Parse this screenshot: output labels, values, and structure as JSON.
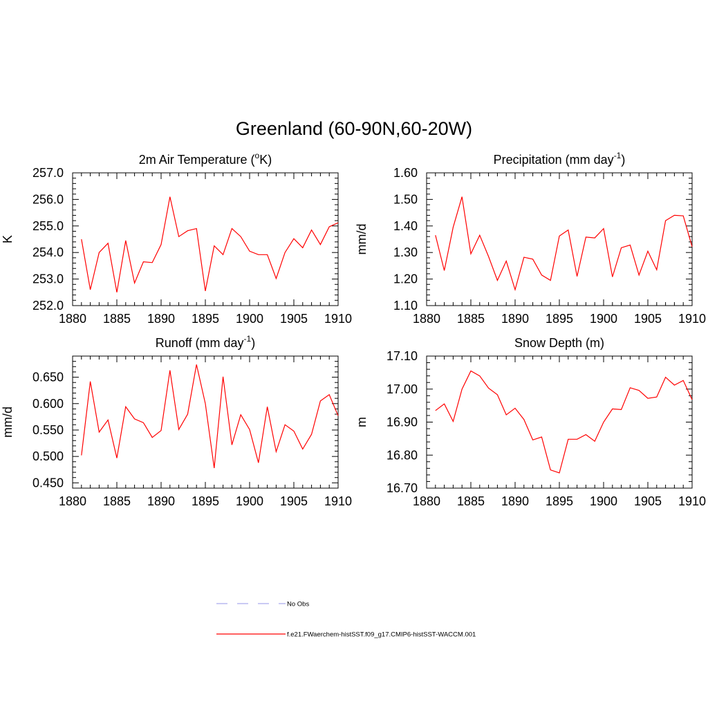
{
  "figure": {
    "title": "Greenland (60-90N,60-20W)",
    "line_color": "#ff0000",
    "legend": [
      {
        "label": "No Obs",
        "color": "#aaaaee",
        "style": "dashed"
      },
      {
        "label": "f.e21.FWaerchem-histSST.f09_g17.CMIP6-histSST-WACCM.001",
        "color": "#ff0000",
        "style": "solid"
      }
    ]
  },
  "chart_data": [
    {
      "type": "line",
      "title_main": "2m Air Temperature (",
      "title_sup": "o",
      "title_tail": "K)",
      "ylabel": "K",
      "xlim": [
        1880,
        1910
      ],
      "ylim": [
        252.0,
        257.0
      ],
      "xticks": [
        1880,
        1885,
        1890,
        1895,
        1900,
        1905,
        1910
      ],
      "yticks": [
        "252.0",
        "253.0",
        "254.0",
        "255.0",
        "256.0",
        "257.0"
      ],
      "series": [
        {
          "x": [
            1881,
            1882,
            1883,
            1884,
            1885,
            1886,
            1887,
            1888,
            1889,
            1890,
            1891,
            1892,
            1893,
            1894,
            1895,
            1896,
            1897,
            1898,
            1899,
            1900,
            1901,
            1902,
            1903,
            1904,
            1905,
            1906,
            1907,
            1908,
            1909,
            1910
          ],
          "values": [
            254.5,
            252.6,
            254.0,
            254.35,
            252.5,
            254.45,
            252.85,
            253.65,
            253.62,
            254.3,
            256.1,
            254.6,
            254.82,
            254.9,
            252.55,
            254.25,
            253.92,
            254.9,
            254.6,
            254.05,
            253.92,
            253.92,
            253.02,
            254.0,
            254.52,
            254.18,
            254.85,
            254.3,
            254.97,
            255.12
          ]
        }
      ]
    },
    {
      "type": "line",
      "title_main": "Precipitation (mm day",
      "title_sup": "-1",
      "title_tail": ")",
      "ylabel": "mm/d",
      "xlim": [
        1880,
        1910
      ],
      "ylim": [
        1.1,
        1.6
      ],
      "xticks": [
        1880,
        1885,
        1890,
        1895,
        1900,
        1905,
        1910
      ],
      "yticks": [
        "1.10",
        "1.20",
        "1.30",
        "1.40",
        "1.50",
        "1.60"
      ],
      "series": [
        {
          "x": [
            1881,
            1882,
            1883,
            1884,
            1885,
            1886,
            1887,
            1888,
            1889,
            1890,
            1891,
            1892,
            1893,
            1894,
            1895,
            1896,
            1897,
            1898,
            1899,
            1900,
            1901,
            1902,
            1903,
            1904,
            1905,
            1906,
            1907,
            1908,
            1909,
            1910
          ],
          "values": [
            1.365,
            1.232,
            1.395,
            1.51,
            1.295,
            1.365,
            1.285,
            1.195,
            1.268,
            1.16,
            1.282,
            1.275,
            1.215,
            1.195,
            1.362,
            1.385,
            1.21,
            1.358,
            1.355,
            1.39,
            1.208,
            1.318,
            1.328,
            1.215,
            1.305,
            1.235,
            1.42,
            1.44,
            1.438,
            1.322
          ]
        }
      ]
    },
    {
      "type": "line",
      "title_main": "Runoff (mm day",
      "title_sup": "-1",
      "title_tail": ")",
      "ylabel": "mm/d",
      "xlim": [
        1880,
        1910
      ],
      "ylim": [
        0.44,
        0.69
      ],
      "xticks": [
        1880,
        1885,
        1890,
        1895,
        1900,
        1905,
        1910
      ],
      "yticks": [
        "0.450",
        "0.500",
        "0.550",
        "0.600",
        "0.650"
      ],
      "series": [
        {
          "x": [
            1881,
            1882,
            1883,
            1884,
            1885,
            1886,
            1887,
            1888,
            1889,
            1890,
            1891,
            1892,
            1893,
            1894,
            1895,
            1896,
            1897,
            1898,
            1899,
            1900,
            1901,
            1902,
            1903,
            1904,
            1905,
            1906,
            1907,
            1908,
            1909,
            1910
          ],
          "values": [
            0.502,
            0.642,
            0.546,
            0.569,
            0.497,
            0.594,
            0.571,
            0.564,
            0.536,
            0.549,
            0.663,
            0.551,
            0.58,
            0.674,
            0.6,
            0.478,
            0.651,
            0.522,
            0.579,
            0.551,
            0.488,
            0.594,
            0.509,
            0.56,
            0.548,
            0.514,
            0.542,
            0.605,
            0.617,
            0.577
          ]
        }
      ]
    },
    {
      "type": "line",
      "title_main": "Snow Depth (m)",
      "title_sup": "",
      "title_tail": "",
      "ylabel": "m",
      "xlim": [
        1880,
        1910
      ],
      "ylim": [
        16.7,
        17.1
      ],
      "xticks": [
        1880,
        1885,
        1890,
        1895,
        1900,
        1905,
        1910
      ],
      "yticks": [
        "16.70",
        "16.80",
        "16.90",
        "17.00",
        "17.10"
      ],
      "series": [
        {
          "x": [
            1881,
            1882,
            1883,
            1884,
            1885,
            1886,
            1887,
            1888,
            1889,
            1890,
            1891,
            1892,
            1893,
            1894,
            1895,
            1896,
            1897,
            1898,
            1899,
            1900,
            1901,
            1902,
            1903,
            1904,
            1905,
            1906,
            1907,
            1908,
            1909,
            1910
          ],
          "values": [
            16.935,
            16.955,
            16.902,
            17.0,
            17.055,
            17.04,
            17.003,
            16.983,
            16.922,
            16.942,
            16.908,
            16.846,
            16.855,
            16.755,
            16.746,
            16.848,
            16.848,
            16.862,
            16.842,
            16.9,
            16.94,
            16.938,
            17.004,
            16.996,
            16.972,
            16.976,
            17.036,
            17.012,
            17.026,
            16.968
          ]
        }
      ]
    }
  ]
}
